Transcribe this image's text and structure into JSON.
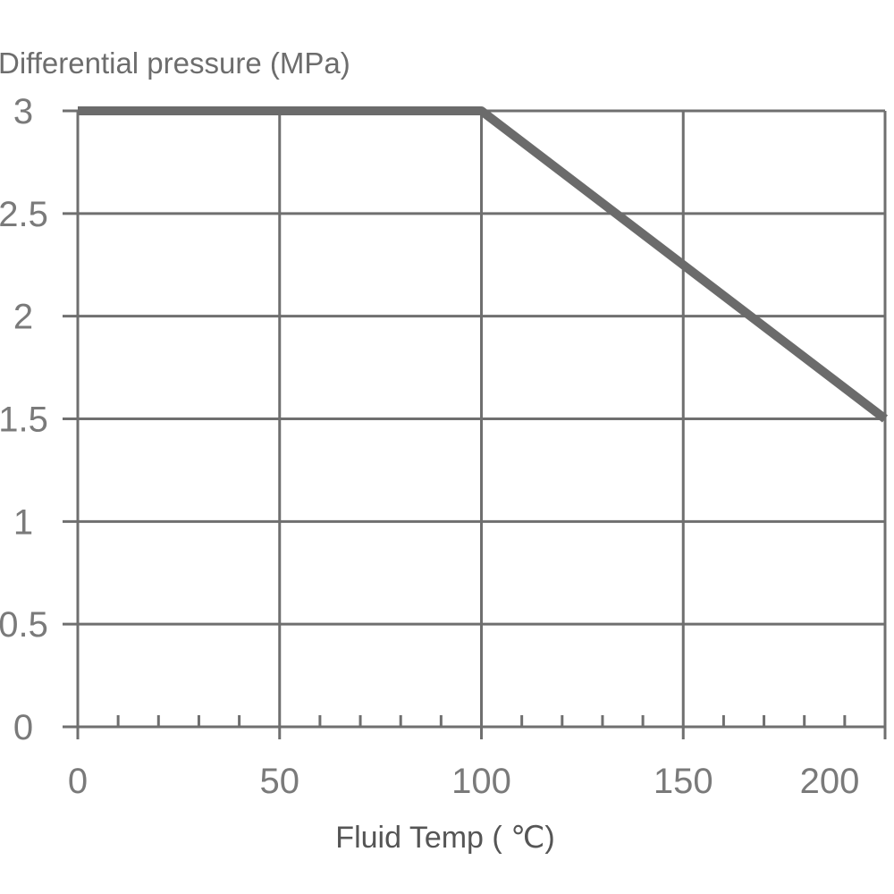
{
  "chart_data": {
    "type": "line",
    "ylabel": "Differential pressure (MPa)",
    "xlabel": "Fluid Temp ( ℃)",
    "xlim": [
      0,
      200
    ],
    "ylim": [
      0,
      3
    ],
    "x_ticks": [
      "0",
      "50",
      "100",
      "150",
      "200"
    ],
    "y_ticks": [
      "0",
      "0.5",
      "1",
      "1.5",
      "2",
      "2.5",
      "3"
    ],
    "minor_x_step": 10,
    "grid": true,
    "series": [
      {
        "x": [
          0,
          100,
          200
        ],
        "y": [
          3,
          3,
          1.5
        ],
        "color": "#6b6b6b"
      }
    ]
  }
}
